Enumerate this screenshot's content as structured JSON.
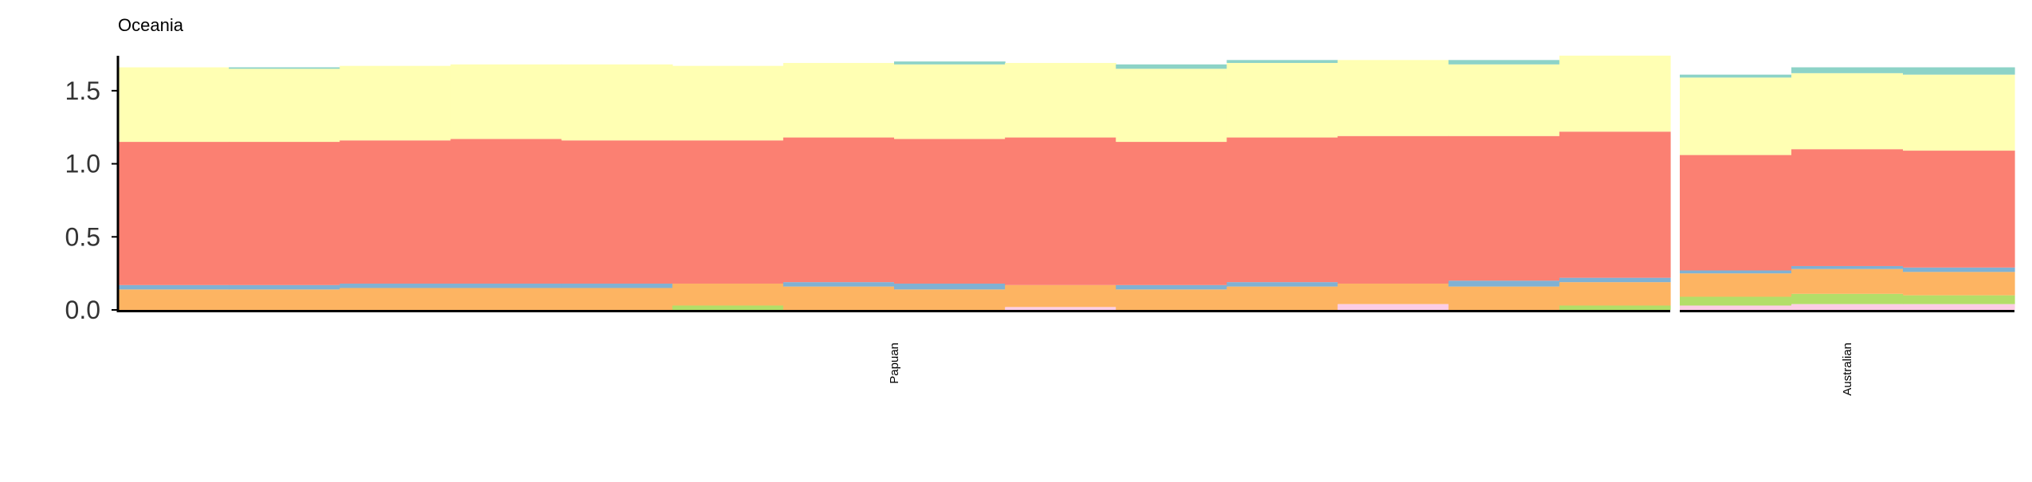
{
  "chart_data": {
    "type": "bar",
    "subtype": "stacked",
    "title": "Oceania",
    "xlabel": "",
    "ylabel": "",
    "ylim": [
      0,
      1.75
    ],
    "y_ticks": [
      0.0,
      0.5,
      1.0,
      1.5
    ],
    "y_tick_labels": [
      "0.0",
      "0.5",
      "1.0",
      "1.5"
    ],
    "grid": false,
    "legend": "none",
    "panels": [
      {
        "name": "Papuan",
        "bars": 14
      },
      {
        "name": "Australian",
        "bars": 3
      }
    ],
    "series": [
      {
        "key": "pink",
        "color": "#fccde5",
        "values": [
          0,
          0,
          0,
          0,
          0,
          0,
          0,
          0,
          0.02,
          0,
          0,
          0.04,
          0,
          0,
          0.03,
          0.04,
          0.04
        ]
      },
      {
        "key": "green",
        "color": "#b3de69",
        "values": [
          0,
          0,
          0,
          0,
          0,
          0.03,
          0,
          0,
          0,
          0,
          0,
          0,
          0,
          0.03,
          0.06,
          0.07,
          0.06
        ]
      },
      {
        "key": "orange",
        "color": "#fdb462",
        "values": [
          0.14,
          0.14,
          0.15,
          0.15,
          0.15,
          0.15,
          0.16,
          0.14,
          0.15,
          0.14,
          0.16,
          0.14,
          0.16,
          0.16,
          0.16,
          0.17,
          0.16
        ]
      },
      {
        "key": "blue",
        "color": "#80b1d3",
        "values": [
          0.03,
          0.03,
          0.03,
          0.03,
          0.03,
          0,
          0.03,
          0.04,
          0,
          0.03,
          0.03,
          0,
          0.04,
          0.03,
          0.02,
          0.02,
          0.03
        ]
      },
      {
        "key": "salmon",
        "color": "#fb8072",
        "values": [
          0.98,
          0.98,
          0.98,
          0.99,
          0.98,
          0.98,
          0.99,
          0.99,
          1.01,
          0.98,
          0.99,
          1.01,
          0.99,
          1.0,
          0.79,
          0.8,
          0.8
        ]
      },
      {
        "key": "yellow",
        "color": "#ffffb3",
        "values": [
          0.51,
          0.5,
          0.51,
          0.51,
          0.52,
          0.51,
          0.51,
          0.51,
          0.51,
          0.5,
          0.51,
          0.52,
          0.49,
          0.52,
          0.53,
          0.52,
          0.52
        ]
      },
      {
        "key": "teal",
        "color": "#8dd3c7",
        "values": [
          0,
          0.01,
          0,
          0,
          0,
          0,
          0,
          0.02,
          0,
          0.03,
          0.02,
          0,
          0.03,
          0,
          0.02,
          0.04,
          0.05
        ]
      }
    ]
  }
}
